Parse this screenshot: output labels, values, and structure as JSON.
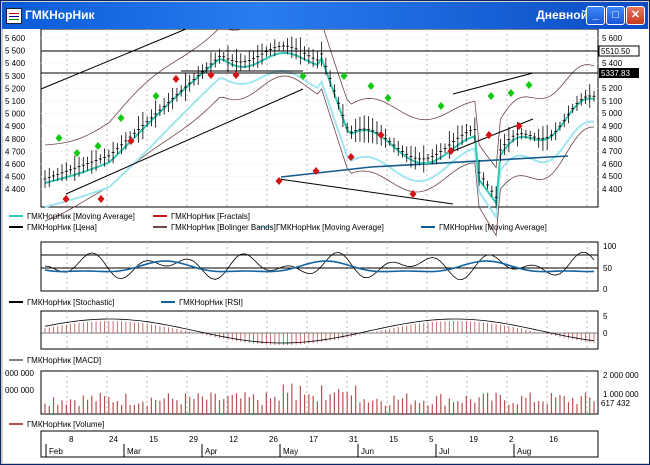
{
  "window": {
    "title": "ГМКНорНик",
    "period": "Дневной",
    "min_label": "_",
    "max_label": "□",
    "close_label": "✕"
  },
  "price_pane": {
    "y_ticks": [
      "5 600",
      "5 500",
      "5 400",
      "5 300",
      "5 200",
      "5 100",
      "5 000",
      "4 900",
      "4 800",
      "4 700",
      "4 600",
      "4 500",
      "4 400"
    ],
    "right_ticks": [
      "5 600",
      "5 400",
      "5 200",
      "5 100",
      "5 000",
      "4 900",
      "4 800",
      "4 700",
      "4 600",
      "4 500",
      "4 400"
    ],
    "marker_top": "5510.50",
    "marker_price": "5337.83",
    "marker_right": "5 220.22",
    "legend": [
      {
        "label": "ГМКНорНик [Moving Average]",
        "color": "#32c8b4"
      },
      {
        "label": "ГМКНорНик [Fractals]",
        "color": "#c81414"
      },
      {
        "label": "ГМКНорНик [Moving Average]",
        "color": "#a0e6f0"
      },
      {
        "label": "ГМКНорНик [Moving Average]",
        "color": "#145a8c"
      },
      {
        "label": "ГМКНорНик [Цена]",
        "color": "#000000"
      },
      {
        "label": "ГМКНорНик [Bolinger Bands]",
        "color": "#6e4646"
      }
    ]
  },
  "osc_pane": {
    "ticks": [
      "100",
      "50",
      "0"
    ],
    "legend": [
      {
        "label": "ГМКНорНик [Stochastic]",
        "color": "#000000"
      },
      {
        "label": "ГМКНорНик [RSI]",
        "color": "#1464a0"
      }
    ]
  },
  "macd_pane": {
    "ticks": [
      "5",
      "0"
    ],
    "legend": [
      {
        "label": "ГМКНорНик [MACD]",
        "color": "#000000"
      }
    ]
  },
  "volume_pane": {
    "left_ticks": [
      "000 000",
      "000 000"
    ],
    "right_ticks": [
      "2 000 000",
      "1 000 000"
    ],
    "marker": "617 432",
    "legend": [
      {
        "label": "ГМКНорНик [Volume]",
        "color": "#c86464"
      }
    ]
  },
  "x_axis": {
    "days": [
      "8",
      "24",
      "15",
      "29",
      "12",
      "26",
      "17",
      "31",
      "15",
      "5",
      "19",
      "2",
      "16"
    ],
    "months": [
      "Feb",
      "Mar",
      "Apr",
      "May",
      "Jun",
      "Jul",
      "Aug"
    ]
  },
  "colors": {
    "ma_fast": "#32c8b4",
    "ma_mid": "#a0e6f0",
    "ma_slow": "#145a8c",
    "fractal_up": "#14c814",
    "fractal_down": "#d21414",
    "bands": "#6e4646",
    "volume": "#b45050",
    "rsi": "#1464a0"
  },
  "icons": [
    "app-icon",
    "minimize-icon",
    "maximize-icon",
    "close-icon"
  ]
}
